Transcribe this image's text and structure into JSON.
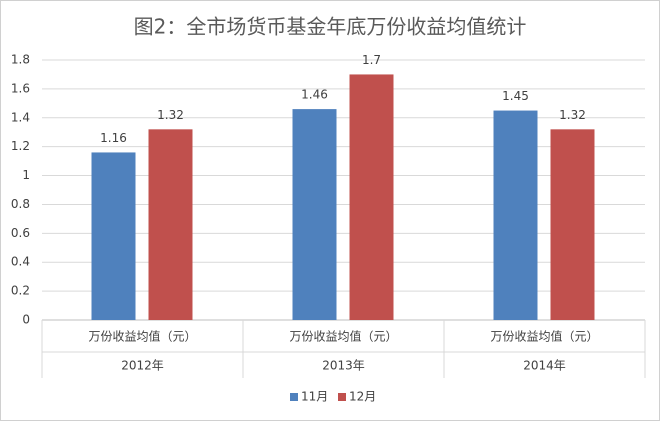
{
  "chart_data": {
    "type": "bar",
    "title": "图2：全市场货币基金年底万份收益均值统计",
    "categories": [
      "2012年",
      "2013年",
      "2014年"
    ],
    "sublabels": [
      "万份收益均值（元）",
      "万份收益均值（元）",
      "万份收益均值（元）"
    ],
    "series": [
      {
        "name": "11月",
        "color": "#4f81bd",
        "values": [
          1.16,
          1.46,
          1.45
        ]
      },
      {
        "name": "12月",
        "color": "#c0504d",
        "values": [
          1.32,
          1.7,
          1.32
        ]
      }
    ],
    "ylim": [
      0,
      1.8
    ],
    "yticks": [
      0,
      0.2,
      0.4,
      0.6,
      0.8,
      1,
      1.2,
      1.4,
      1.6,
      1.8
    ],
    "grid": true,
    "legend": "bottom"
  }
}
